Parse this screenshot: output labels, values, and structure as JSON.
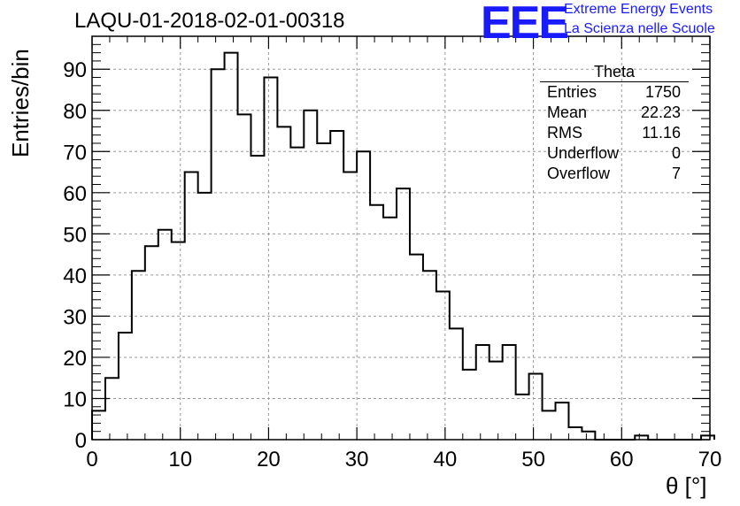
{
  "header": {
    "title": "LAQU-01-2018-02-01-00318",
    "logo_text": "EEE",
    "logo_line1": "Extreme Energy Events",
    "logo_line2": "La Scienza nelle Scuole"
  },
  "stats_box": {
    "title": "Theta",
    "rows": [
      {
        "label": "Entries",
        "value": "1750"
      },
      {
        "label": "Mean",
        "value": "22.23"
      },
      {
        "label": "RMS",
        "value": "11.16"
      },
      {
        "label": "Underflow",
        "value": "0"
      },
      {
        "label": "Overflow",
        "value": "7"
      }
    ]
  },
  "chart_data": {
    "type": "bar",
    "subtype": "histogram-step",
    "title": "LAQU-01-2018-02-01-00318",
    "xlabel": "θ [°]",
    "ylabel": "Entries/bin",
    "xlim": [
      0,
      70
    ],
    "ylim": [
      0,
      98
    ],
    "xticks": [
      0,
      10,
      20,
      30,
      40,
      50,
      60,
      70
    ],
    "yticks": [
      0,
      10,
      20,
      30,
      40,
      50,
      60,
      70,
      80,
      90
    ],
    "grid": true,
    "bin_width": 1.5,
    "bin_edges_start": 0,
    "values": [
      7,
      15,
      26,
      41,
      47,
      51,
      48,
      65,
      60,
      90,
      94,
      79,
      69,
      88,
      76,
      71,
      80,
      72,
      75,
      65,
      70,
      57,
      54,
      61,
      45,
      41,
      36,
      27,
      17,
      23,
      19,
      23,
      11,
      16,
      7,
      9,
      3,
      2,
      0,
      0,
      0,
      1,
      0,
      0,
      0,
      0,
      1
    ],
    "line_color": "#000000"
  }
}
